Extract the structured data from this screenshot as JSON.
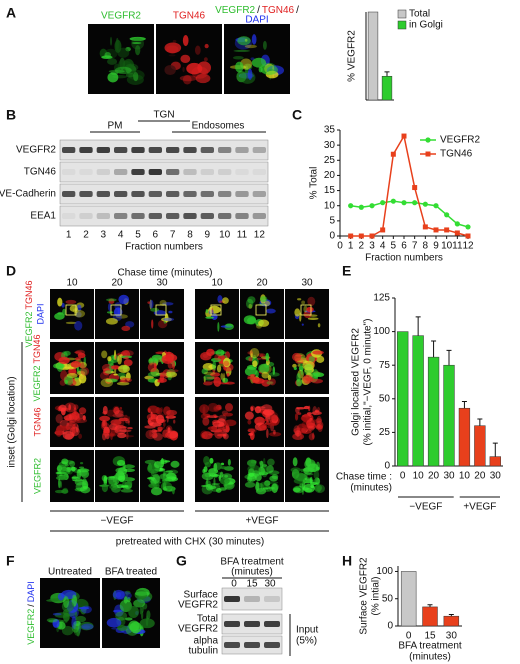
{
  "figure": {
    "panel_letters": [
      "A",
      "B",
      "C",
      "D",
      "E",
      "F",
      "G",
      "H"
    ],
    "a": {
      "image_titles": [
        "VEGFR2",
        "TGN46"
      ],
      "merge_title": [
        "VEGFR2",
        "/",
        "TGN46",
        "/",
        "DAPI"
      ]
    },
    "b": {
      "row_labels": [
        "VEGFR2",
        "TGN46",
        "VE-Cadherin",
        "EEA1"
      ],
      "fractions": [
        "1",
        "2",
        "3",
        "4",
        "5",
        "6",
        "7",
        "8",
        "9",
        "10",
        "11",
        "12"
      ],
      "x_label": "Fraction numbers",
      "regions": [
        "PM",
        "TGN",
        "Endosomes"
      ]
    },
    "d": {
      "chase_title": "Chase time (minutes)",
      "times": [
        "10",
        "20",
        "30"
      ],
      "row_labels": [
        [
          "VEGFR2",
          "TGN46",
          "DAPI"
        ],
        [
          "VEGFR2",
          "TGN46"
        ],
        [
          "TGN46"
        ],
        [
          "VEGFR2"
        ]
      ],
      "inset_label": "inset (Golgi location)",
      "conditions": [
        "−VEGF",
        "+VEGF"
      ],
      "footer": "pretreated with CHX (30 minutes)"
    },
    "f": {
      "conditions": [
        "Untreated",
        "BFA treated"
      ],
      "stain": [
        "VEGFR2",
        "/",
        "DAPI"
      ]
    },
    "g": {
      "title": "BFA treatment",
      "unit": "(minutes)",
      "times": [
        "0",
        "15",
        "30"
      ],
      "row_labels": [
        [
          "Surface",
          "VEGFR2"
        ],
        [
          "Total",
          "VEGFR2"
        ],
        [
          "alpha",
          "tubulin"
        ]
      ],
      "input": [
        "Input",
        "(5%)"
      ]
    }
  },
  "chart_data": [
    {
      "type": "bar",
      "y_label": "% VEGFR2",
      "categories": [
        null,
        null
      ],
      "series": [
        {
          "name": "Total",
          "color": "#c8c8c8",
          "values": [
            100,
            null
          ]
        },
        {
          "name": "in Golgi",
          "color": "#2ecc2e",
          "values": [
            null,
            27
          ],
          "errors": [
            null,
            5
          ]
        }
      ],
      "ylim": [
        0,
        100
      ],
      "legend": "upper right"
    },
    {
      "type": "line",
      "y_label": "% Total",
      "x_label": "Fraction numbers",
      "x": [
        1,
        2,
        3,
        4,
        5,
        6,
        7,
        8,
        9,
        10,
        11,
        12
      ],
      "series": [
        {
          "name": "VEGFR2",
          "color": "#33dd33",
          "values": [
            10,
            9.5,
            10,
            11,
            11.5,
            11,
            11,
            10.5,
            10,
            7,
            4,
            3
          ]
        },
        {
          "name": "TGN46",
          "color": "#e8401c",
          "values": [
            0,
            0,
            0,
            2,
            27,
            33,
            16,
            3,
            2,
            2,
            1,
            0
          ]
        }
      ],
      "xlim": [
        0,
        12
      ],
      "xticks": [
        0,
        1,
        2,
        3,
        4,
        5,
        6,
        7,
        8,
        9,
        10,
        11,
        12
      ],
      "ylim": [
        0,
        35
      ],
      "yticks": [
        0,
        5,
        10,
        15,
        20,
        25,
        30,
        35
      ],
      "legend": "upper right"
    },
    {
      "type": "bar",
      "y_label": [
        "Golgi localized VEGFR2",
        "(% initial,\"−VEGF, 0 minute\")"
      ],
      "x_label": [
        "Chase time :",
        "(minutes)"
      ],
      "categories": [
        "0",
        "10",
        "20",
        "30",
        "10",
        "20",
        "30"
      ],
      "series": [
        {
          "name": "−VEGF",
          "color": "#2ecc2e",
          "values": [
            100,
            97,
            81,
            75,
            null,
            null,
            null
          ],
          "errors": [
            null,
            14,
            12,
            11,
            null,
            null,
            null
          ]
        },
        {
          "name": "+VEGF",
          "color": "#e8401c",
          "values": [
            null,
            null,
            null,
            null,
            43,
            30,
            7
          ],
          "errors": [
            null,
            null,
            null,
            null,
            5,
            5,
            10
          ]
        }
      ],
      "ylim": [
        0,
        125
      ],
      "yticks": [
        0,
        25,
        50,
        75,
        100,
        125
      ]
    },
    {
      "type": "bar",
      "y_label": [
        "Surface VEGFR2",
        "(% intial)"
      ],
      "x_label": [
        "BFA treatment",
        "(minutes)"
      ],
      "categories": [
        "0",
        "15",
        "30"
      ],
      "values": [
        100,
        35,
        18
      ],
      "errors": [
        null,
        4,
        3
      ],
      "colors": [
        "#c8c8c8",
        "#e8401c",
        "#e8401c"
      ],
      "ylim": [
        0,
        110
      ],
      "yticks": [
        0,
        50,
        100
      ]
    }
  ]
}
